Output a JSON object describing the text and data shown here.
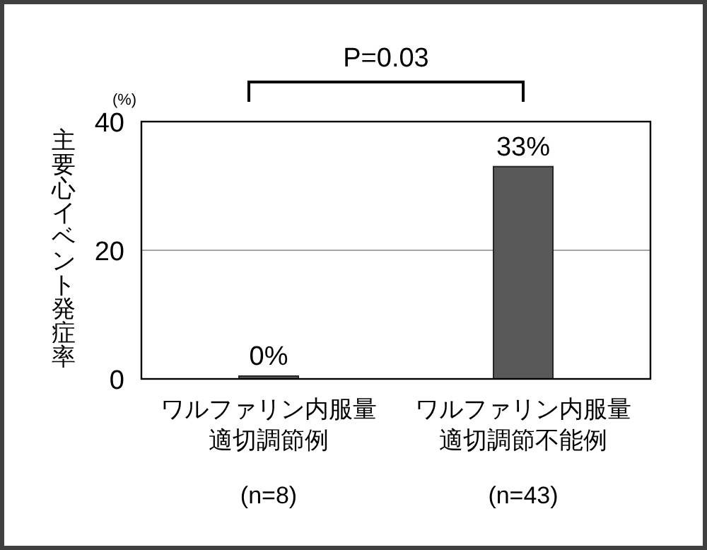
{
  "chart_data": {
    "type": "bar",
    "categories": [
      "ワルファリン内服量適切調節例",
      "ワルファリン内服量適切調節不能例"
    ],
    "values": [
      0,
      33
    ],
    "value_labels": [
      "0%",
      "33%"
    ],
    "color": "#595959",
    "ylabel": "主要心イベント発症率",
    "ylim": [
      0,
      40
    ],
    "yticks": [
      0,
      20,
      40
    ],
    "grid": "y",
    "annotations": [
      "(%)",
      "P=0.03",
      "(n=8)",
      "(n=43)"
    ]
  }
}
